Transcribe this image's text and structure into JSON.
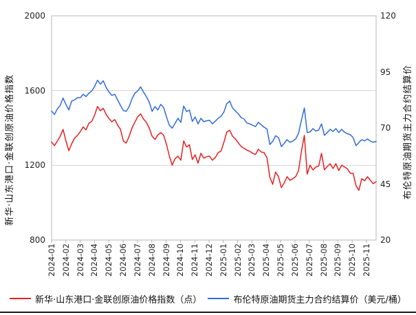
{
  "chart_data": {
    "type": "line",
    "title": "",
    "grid": true,
    "gridline_values_left": [
      1600,
      1200
    ],
    "x_tick_labels": [
      "2024-01",
      "2024-02",
      "2024-03",
      "2024-04",
      "2024-05",
      "2024-06",
      "2024-07",
      "2024-08",
      "2024-09",
      "2024-10",
      "2024-11",
      "2024-12",
      "2025-01",
      "2025-02",
      "2025-03",
      "2025-04",
      "2025-05",
      "2025-06",
      "2025-07",
      "2025-08",
      "2025-09",
      "2025-10",
      "2025-11"
    ],
    "left_axis": {
      "label": "新华·山东港口·金联创原油价格指数",
      "tick_labels": [
        "2000",
        "1600",
        "1200",
        "800"
      ],
      "ticks": [
        2000,
        1600,
        1200,
        800
      ],
      "range": [
        800,
        2000
      ]
    },
    "right_axis": {
      "label": "布伦特原油期货主力合约结算价",
      "tick_labels": [
        "120",
        "95",
        "70",
        "45",
        "20"
      ],
      "ticks": [
        120,
        95,
        70,
        45,
        20
      ],
      "range": [
        20,
        120
      ]
    },
    "points_per_month": 5,
    "series": [
      {
        "name": "新华·山东港口·金联创原油价格指数（点）",
        "axis": "left",
        "color": "#e81e1e",
        "values": [
          1325,
          1305,
          1330,
          1355,
          1392,
          1330,
          1278,
          1315,
          1345,
          1360,
          1380,
          1405,
          1390,
          1425,
          1435,
          1470,
          1515,
          1492,
          1505,
          1472,
          1450,
          1433,
          1445,
          1415,
          1393,
          1330,
          1319,
          1355,
          1400,
          1430,
          1460,
          1475,
          1448,
          1430,
          1400,
          1356,
          1338,
          1362,
          1375,
          1362,
          1312,
          1249,
          1201,
          1235,
          1249,
          1227,
          1330,
          1298,
          1310,
          1231,
          1256,
          1212,
          1264,
          1238,
          1246,
          1249,
          1227,
          1241,
          1268,
          1276,
          1323,
          1378,
          1388,
          1356,
          1341,
          1320,
          1301,
          1291,
          1281,
          1275,
          1264,
          1258,
          1286,
          1271,
          1268,
          1240,
          1135,
          1098,
          1164,
          1139,
          1080,
          1106,
          1139,
          1120,
          1128,
          1139,
          1172,
          1276,
          1360,
          1153,
          1201,
          1175,
          1191,
          1196,
          1264,
          1176,
          1194,
          1208,
          1183,
          1209,
          1172,
          1201,
          1191,
          1181,
          1157,
          1157,
          1090,
          1066,
          1128,
          1117,
          1139,
          1120,
          1102,
          1112
        ]
      },
      {
        "name": "布伦特原油期货主力合约结算价（美元/桶）",
        "axis": "right",
        "color": "#2f6bd9",
        "values": [
          77.5,
          76.0,
          78.5,
          80.0,
          83.3,
          80.5,
          78.0,
          82.0,
          82.5,
          83.5,
          83.5,
          85.0,
          84.0,
          85.5,
          86.5,
          88.5,
          91.3,
          89.5,
          91.0,
          88.0,
          86.0,
          84.5,
          85.0,
          82.5,
          80.0,
          77.8,
          77.4,
          79.5,
          83.0,
          85.5,
          86.5,
          88.3,
          86.0,
          84.0,
          81.5,
          77.4,
          79.5,
          78.0,
          80.5,
          79.2,
          74.9,
          71.2,
          69.9,
          72.0,
          74.3,
          72.5,
          79.8,
          77.3,
          78.0,
          72.9,
          74.9,
          71.8,
          74.3,
          72.8,
          73.2,
          73.4,
          71.8,
          73.0,
          74.3,
          75.2,
          77.1,
          80.8,
          82.0,
          78.9,
          77.6,
          76.3,
          74.6,
          74.0,
          72.2,
          71.8,
          71.2,
          70.6,
          72.5,
          71.4,
          70.3,
          69.5,
          62.6,
          64.0,
          66.5,
          65.7,
          61.7,
          63.1,
          64.8,
          63.6,
          64.1,
          65.1,
          67.6,
          73.5,
          78.9,
          67.9,
          68.2,
          69.7,
          68.6,
          69.1,
          71.8,
          66.7,
          67.9,
          69.4,
          68.4,
          69.7,
          67.9,
          69.4,
          68.1,
          67.4,
          67.0,
          65.7,
          62.1,
          63.5,
          64.8,
          64.2,
          65.1,
          64.1,
          63.6,
          64.0
        ]
      }
    ]
  },
  "legend": {
    "items": [
      {
        "label": "新华·山东港口·金联创原油价格指数（点）",
        "color": "#e81e1e"
      },
      {
        "label": "布伦特原油期货主力合约结算价（美元/桶）",
        "color": "#2f6bd9"
      }
    ]
  },
  "colors": {
    "frame": "#c3c3c3",
    "grid": "#d2d2d2",
    "tick": "#b0b0b0"
  }
}
